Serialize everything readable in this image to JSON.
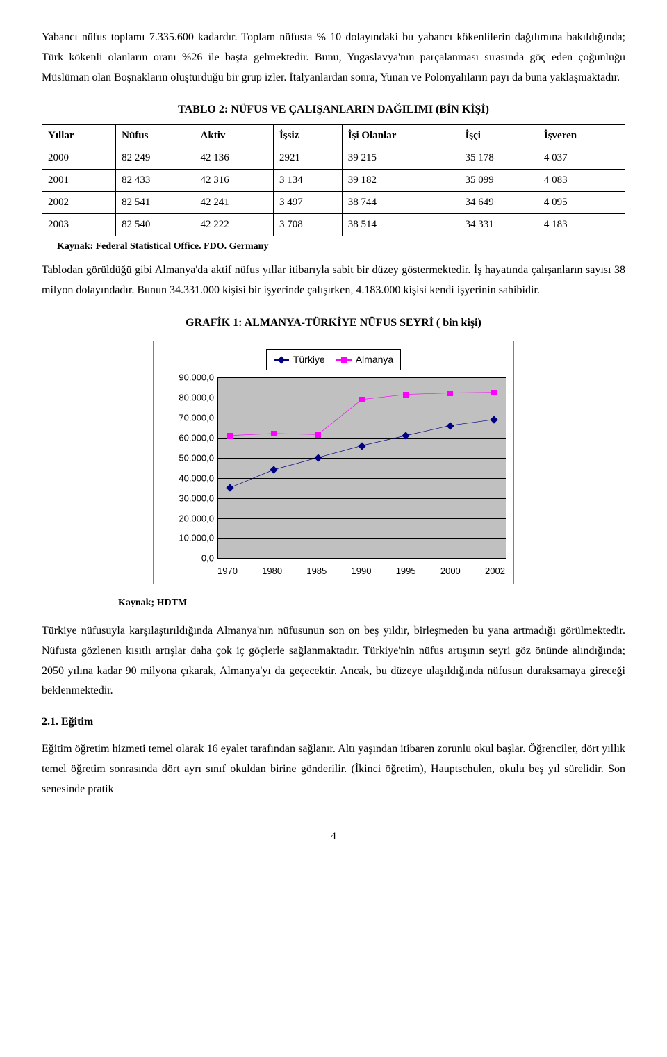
{
  "para1": "Yabancı nüfus toplamı 7.335.600 kadardır. Toplam nüfusta % 10 dolayındaki bu yabancı kökenlilerin dağılımına bakıldığında; Türk kökenli olanların oranı %26 ile başta gelmektedir. Bunu, Yugaslavya'nın parçalanması sırasında göç eden çoğunluğu Müslüman olan Boşnakların oluşturduğu bir grup izler. İtalyanlardan sonra, Yunan ve Polonyalıların payı da buna yaklaşmaktadır.",
  "table": {
    "title": "TABLO 2: NÜFUS VE ÇALIŞANLARIN DAĞILIMI (BİN KİŞİ)",
    "columns": [
      "Yıllar",
      "Nüfus",
      "Aktiv",
      "İşsiz",
      "İşi Olanlar",
      "İşçi",
      "İşveren"
    ],
    "rows": [
      [
        "2000",
        "82 249",
        "42 136",
        "2921",
        "39 215",
        "35 178",
        "4 037"
      ],
      [
        "2001",
        "82 433",
        "42 316",
        "3 134",
        "39 182",
        "35 099",
        "4 083"
      ],
      [
        "2002",
        "82 541",
        "42 241",
        "3 497",
        "38 744",
        "34 649",
        "4 095"
      ],
      [
        "2003",
        "82 540",
        "42 222",
        "3 708",
        "38 514",
        "34 331",
        "4 183"
      ]
    ],
    "source": "Kaynak: Federal Statistical Office. FDO. Germany"
  },
  "para2": "Tablodan görüldüğü gibi Almanya'da aktif nüfus yıllar itibarıyla sabit bir düzey göstermektedir. İş hayatında çalışanların sayısı 38 milyon dolayındadır. Bunun 34.331.000 kişisi bir işyerinde çalışırken, 4.183.000 kişisi kendi işyerinin sahibidir.",
  "chart": {
    "title": "GRAFİK 1: ALMANYA-TÜRKİYE NÜFUS SEYRİ ( bin kişi)",
    "ylim": [
      0,
      90000
    ],
    "ytick_step": 10000,
    "ytick_labels": [
      "0,0",
      "10.000,0",
      "20.000,0",
      "30.000,0",
      "40.000,0",
      "50.000,0",
      "60.000,0",
      "70.000,0",
      "80.000,0",
      "90.000,0"
    ],
    "categories": [
      "1970",
      "1980",
      "1985",
      "1990",
      "1995",
      "2000",
      "2002"
    ],
    "series": [
      {
        "name": "Türkiye",
        "color": "#000080",
        "marker": "diamond",
        "values": [
          35000,
          44000,
          50000,
          56000,
          61000,
          66000,
          69000
        ]
      },
      {
        "name": "Almanya",
        "color": "#ff00ff",
        "marker": "square",
        "values": [
          61000,
          62000,
          61500,
          79000,
          81500,
          82200,
          82500
        ]
      }
    ],
    "background_color": "#c0c0c0",
    "grid_color": "#000000",
    "font_family": "Arial",
    "label_fontsize": 13,
    "source": "Kaynak; HDTM"
  },
  "para3": "Türkiye nüfusuyla karşılaştırıldığında Almanya'nın nüfusunun son on beş yıldır, birleşmeden bu yana artmadığı görülmektedir. Nüfusta gözlenen kısıtlı artışlar daha çok iç göçlerle sağlanmaktadır. Türkiye'nin nüfus artışının seyri göz önünde alındığında; 2050 yılına kadar 90 milyona çıkarak, Almanya'yı da geçecektir. Ancak, bu düzeye ulaşıldığında nüfusun duraksamaya gireceği beklenmektedir.",
  "section_heading": "2.1. Eğitim",
  "para4": "Eğitim öğretim hizmeti temel olarak 16 eyalet tarafından sağlanır. Altı yaşından itibaren zorunlu okul başlar. Öğrenciler, dört yıllık temel öğretim sonrasında dört ayrı sınıf okuldan birine gönderilir. (İkinci öğretim), Hauptschulen, okulu beş yıl sürelidir. Son senesinde pratik",
  "page_number": "4"
}
